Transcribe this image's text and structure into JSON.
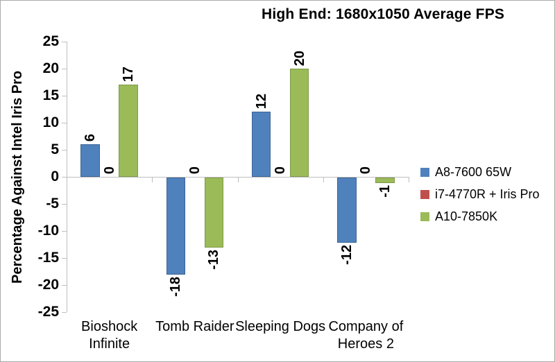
{
  "window": {
    "background": "#FFFFFF",
    "border_color": "#ABABAB"
  },
  "chart_data": {
    "type": "bar",
    "title": "High End: 1680x1050 Average FPS",
    "xlabel": "",
    "ylabel": "Percentage Against Intel Iris Pro",
    "ylim": [
      -25,
      25
    ],
    "ytick_step": 5,
    "yticks": [
      25,
      20,
      15,
      10,
      5,
      0,
      -5,
      -10,
      -15,
      -20,
      -25
    ],
    "grid": false,
    "legend_position": "right",
    "bar_label_rotation": "vertical",
    "axis_color": "#BFBFBF",
    "text_color": "#000000",
    "categories": [
      "Bioshock Infinite",
      "Tomb Raider",
      "Sleeping Dogs",
      "Company of Heroes 2"
    ],
    "category_label_lines": [
      [
        "Bioshock",
        "Infinite"
      ],
      [
        "Tomb Raider"
      ],
      [
        "Sleeping Dogs"
      ],
      [
        "Company of",
        "Heroes 2"
      ]
    ],
    "series": [
      {
        "name": "A8-7600 65W",
        "color": "#4F81BD",
        "border_color": "#3C6494",
        "values": [
          6,
          -18,
          12,
          -12
        ]
      },
      {
        "name": "i7-4770R + Iris Pro",
        "color": "#C0504D",
        "border_color": "#953B38",
        "values": [
          0,
          0,
          0,
          0
        ]
      },
      {
        "name": "A10-7850K",
        "color": "#9BBB59",
        "border_color": "#7E9A48",
        "values": [
          17,
          -13,
          20,
          -1
        ]
      }
    ]
  }
}
